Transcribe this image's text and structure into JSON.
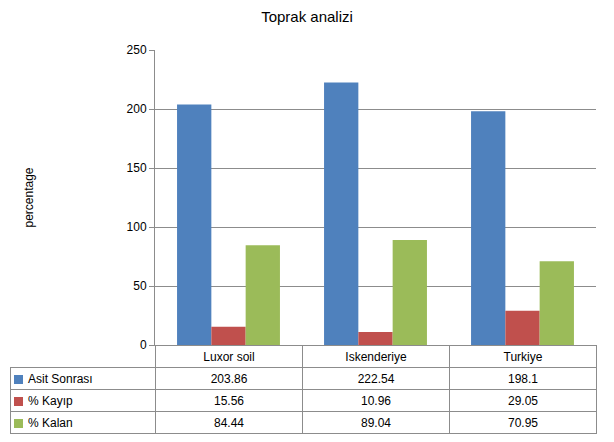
{
  "chart_data": {
    "type": "bar",
    "title": "Toprak analizi",
    "y_label": "percentage",
    "categories": [
      "Luxor soil",
      "Iskenderiye",
      "Turkiye"
    ],
    "series": [
      {
        "name": "Asit Sonrası",
        "color": "#4F81BD",
        "values": [
          203.86,
          222.54,
          198.1
        ]
      },
      {
        "name": "% Kayıp",
        "color": "#C0504D",
        "values": [
          15.56,
          10.96,
          29.05
        ]
      },
      {
        "name": "% Kalan",
        "color": "#9BBB59",
        "values": [
          84.44,
          89.04,
          70.95
        ]
      }
    ],
    "ylim": [
      0,
      250
    ],
    "yticks": [
      0,
      50,
      100,
      150,
      200,
      250
    ],
    "grid": true
  }
}
